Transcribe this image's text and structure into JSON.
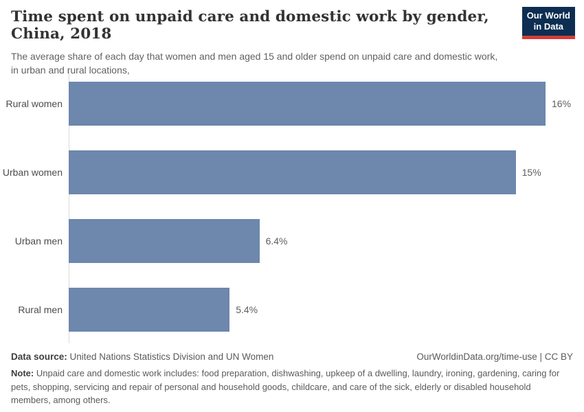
{
  "header": {
    "title": "Time spent on unpaid care and domestic work by gender, China, 2018",
    "subtitle": "The average share of each day that women and men aged 15 and older spend on unpaid care and domestic work, in urban and rural locations,"
  },
  "logo": {
    "line1": "Our World",
    "line2": "in Data"
  },
  "chart_data": {
    "type": "bar",
    "orientation": "horizontal",
    "categories": [
      "Rural women",
      "Urban women",
      "Urban men",
      "Rural men"
    ],
    "values": [
      16,
      15,
      6.4,
      5.4
    ],
    "value_labels": [
      "16%",
      "15%",
      "6.4%",
      "5.4%"
    ],
    "title": "Time spent on unpaid care and domestic work by gender, China, 2018",
    "xlabel": "",
    "ylabel": "",
    "xlim": [
      0,
      16
    ],
    "grid": false,
    "legend": false,
    "unit": "% of each day"
  },
  "colors": {
    "bar": "#6d87ad",
    "logo_bg": "#0d2e52",
    "logo_stripe": "#d73c34",
    "title_text": "#333333",
    "body_text": "#5a5a5a"
  },
  "footer": {
    "source_label": "Data source:",
    "source_text": "United Nations Statistics Division and UN Women",
    "rights": "OurWorldinData.org/time-use | CC BY",
    "note_label": "Note:",
    "note_text": "Unpaid care and domestic work includes: food preparation, dishwashing, upkeep of a dwelling, laundry, ironing, gardening, caring for pets, shopping, servicing and repair of personal and household goods, childcare, and care of the sick, elderly or disabled household members, among others."
  }
}
